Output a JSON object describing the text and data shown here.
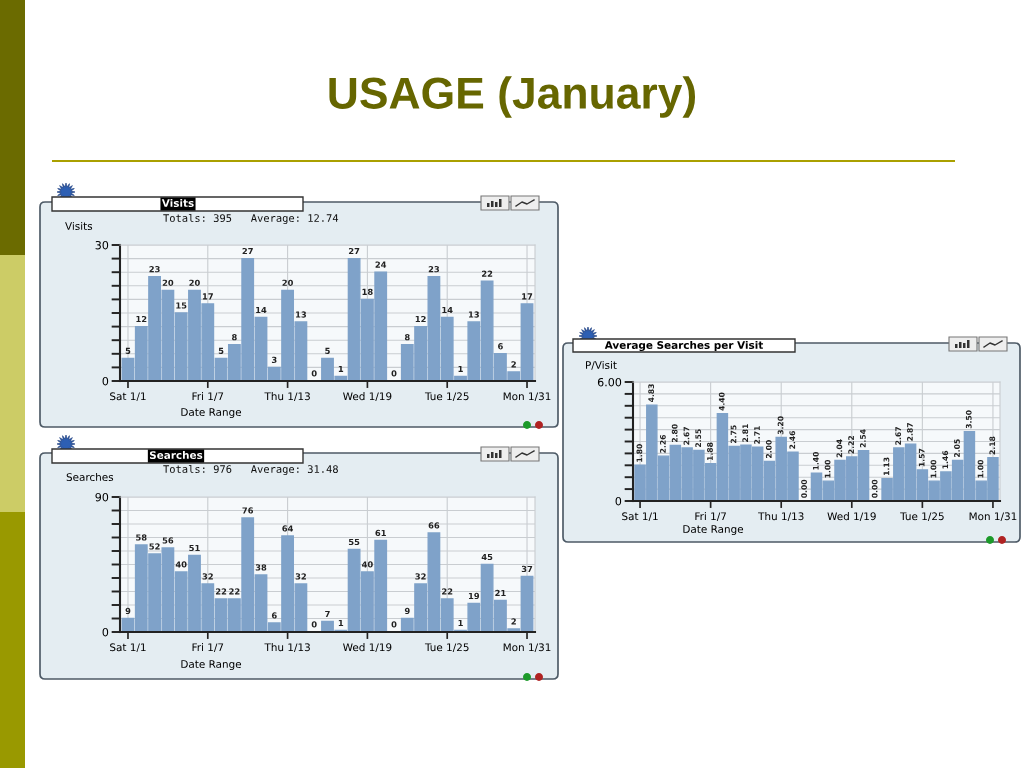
{
  "chart_data": [
    {
      "type": "bar",
      "title": "Visits",
      "subtitle": "Totals: 395   Average: 12.74",
      "ylabel": "Visits",
      "xlabel": "Date Range",
      "annotations": [
        "USAGE (January)"
      ],
      "categories": [
        "Sat 1/1",
        null,
        null,
        null,
        null,
        null,
        "Fri 1/7",
        null,
        null,
        null,
        null,
        null,
        "Thu 1/13",
        null,
        null,
        null,
        null,
        null,
        "Wed 1/19",
        null,
        null,
        null,
        null,
        null,
        "Tue 1/25",
        null,
        null,
        null,
        null,
        null,
        "Mon 1/31"
      ],
      "values": [
        5,
        12,
        23,
        20,
        15,
        20,
        17,
        5,
        8,
        27,
        14,
        3,
        20,
        13,
        0,
        5,
        1,
        27,
        18,
        24,
        0,
        8,
        12,
        23,
        14,
        1,
        13,
        22,
        6,
        2,
        17
      ],
      "color": "#7fa2c9",
      "ylim": [
        0,
        30
      ],
      "yticks": [
        0,
        {
          "value": 3,
          "label": null
        },
        {
          "value": 6,
          "label": null
        },
        {
          "value": 9,
          "label": null
        },
        {
          "value": 12,
          "label": null
        },
        {
          "value": 15,
          "label": null
        },
        {
          "value": 18,
          "label": null
        },
        {
          "value": 21,
          "label": null
        },
        {
          "value": 24,
          "label": null
        },
        {
          "value": 27,
          "label": null
        },
        30
      ],
      "grid": true,
      "data_labels": true
    },
    {
      "type": "bar",
      "title": "Searches",
      "subtitle": "Totals: 976   Average: 31.48",
      "ylabel": "Searches",
      "xlabel": "Date Range",
      "categories": [
        "Sat 1/1",
        null,
        null,
        null,
        null,
        null,
        "Fri 1/7",
        null,
        null,
        null,
        null,
        null,
        "Thu 1/13",
        null,
        null,
        null,
        null,
        null,
        "Wed 1/19",
        null,
        null,
        null,
        null,
        null,
        "Tue 1/25",
        null,
        null,
        null,
        null,
        null,
        "Mon 1/31"
      ],
      "values": [
        9,
        58,
        52,
        56,
        40,
        51,
        32,
        22,
        22,
        76,
        38,
        6,
        64,
        32,
        0,
        7,
        1,
        55,
        40,
        61,
        0,
        9,
        32,
        66,
        22,
        1,
        19,
        45,
        21,
        2,
        37
      ],
      "color": "#7fa2c9",
      "ylim": [
        0,
        90
      ],
      "yticks": [
        0,
        {
          "value": 9,
          "label": null
        },
        {
          "value": 18,
          "label": null
        },
        {
          "value": 27,
          "label": null
        },
        {
          "value": 36,
          "label": null
        },
        {
          "value": 45,
          "label": null
        },
        {
          "value": 54,
          "label": null
        },
        {
          "value": 63,
          "label": null
        },
        {
          "value": 72,
          "label": null
        },
        {
          "value": 81,
          "label": null
        },
        90
      ],
      "grid": true,
      "data_labels": true
    },
    {
      "type": "bar",
      "title": "Average Searches per Visit",
      "ylabel": "P/Visit",
      "xlabel": "Date Range",
      "categories": [
        "Sat 1/1",
        null,
        null,
        null,
        null,
        null,
        "Fri 1/7",
        null,
        null,
        null,
        null,
        null,
        "Thu 1/13",
        null,
        null,
        null,
        null,
        null,
        "Wed 1/19",
        null,
        null,
        null,
        null,
        null,
        "Tue 1/25",
        null,
        null,
        null,
        null,
        null,
        "Mon 1/31"
      ],
      "values": [
        1.8,
        4.83,
        2.26,
        2.8,
        2.67,
        2.55,
        1.88,
        4.4,
        2.75,
        2.81,
        2.71,
        2.0,
        3.2,
        2.46,
        0.0,
        1.4,
        1.0,
        2.04,
        2.22,
        2.54,
        0.0,
        1.13,
        2.67,
        2.87,
        1.57,
        1.0,
        1.46,
        2.05,
        3.5,
        1.0,
        2.18
      ],
      "value_labels": [
        "1.80",
        "4.83",
        "2.26",
        "2.80",
        "2.67",
        "2.55",
        "1.88",
        "4.40",
        "2.75",
        "2.81",
        "2.71",
        "2.00",
        "3.20",
        "2.46",
        "0.00",
        "1.40",
        "1.00",
        "2.04",
        "2.22",
        "2.54",
        "0.00",
        "1.13",
        "2.67",
        "2.87",
        "1.57",
        "1.00",
        "1.46",
        "2.05",
        "3.50",
        "1.00",
        "2.18"
      ],
      "color": "#7fa2c9",
      "ylim": [
        0,
        6
      ],
      "yticks": [
        0,
        {
          "value": 0.6,
          "label": null
        },
        {
          "value": 1.2,
          "label": null
        },
        {
          "value": 1.8,
          "label": null
        },
        {
          "value": 2.4,
          "label": null
        },
        {
          "value": 3.0,
          "label": null
        },
        {
          "value": 3.6,
          "label": null
        },
        {
          "value": 4.2,
          "label": null
        },
        {
          "value": 4.8,
          "label": null
        },
        {
          "value": 5.4,
          "label": null
        },
        {
          "value": 6,
          "label": "6.00"
        }
      ],
      "grid": true
    }
  ]
}
